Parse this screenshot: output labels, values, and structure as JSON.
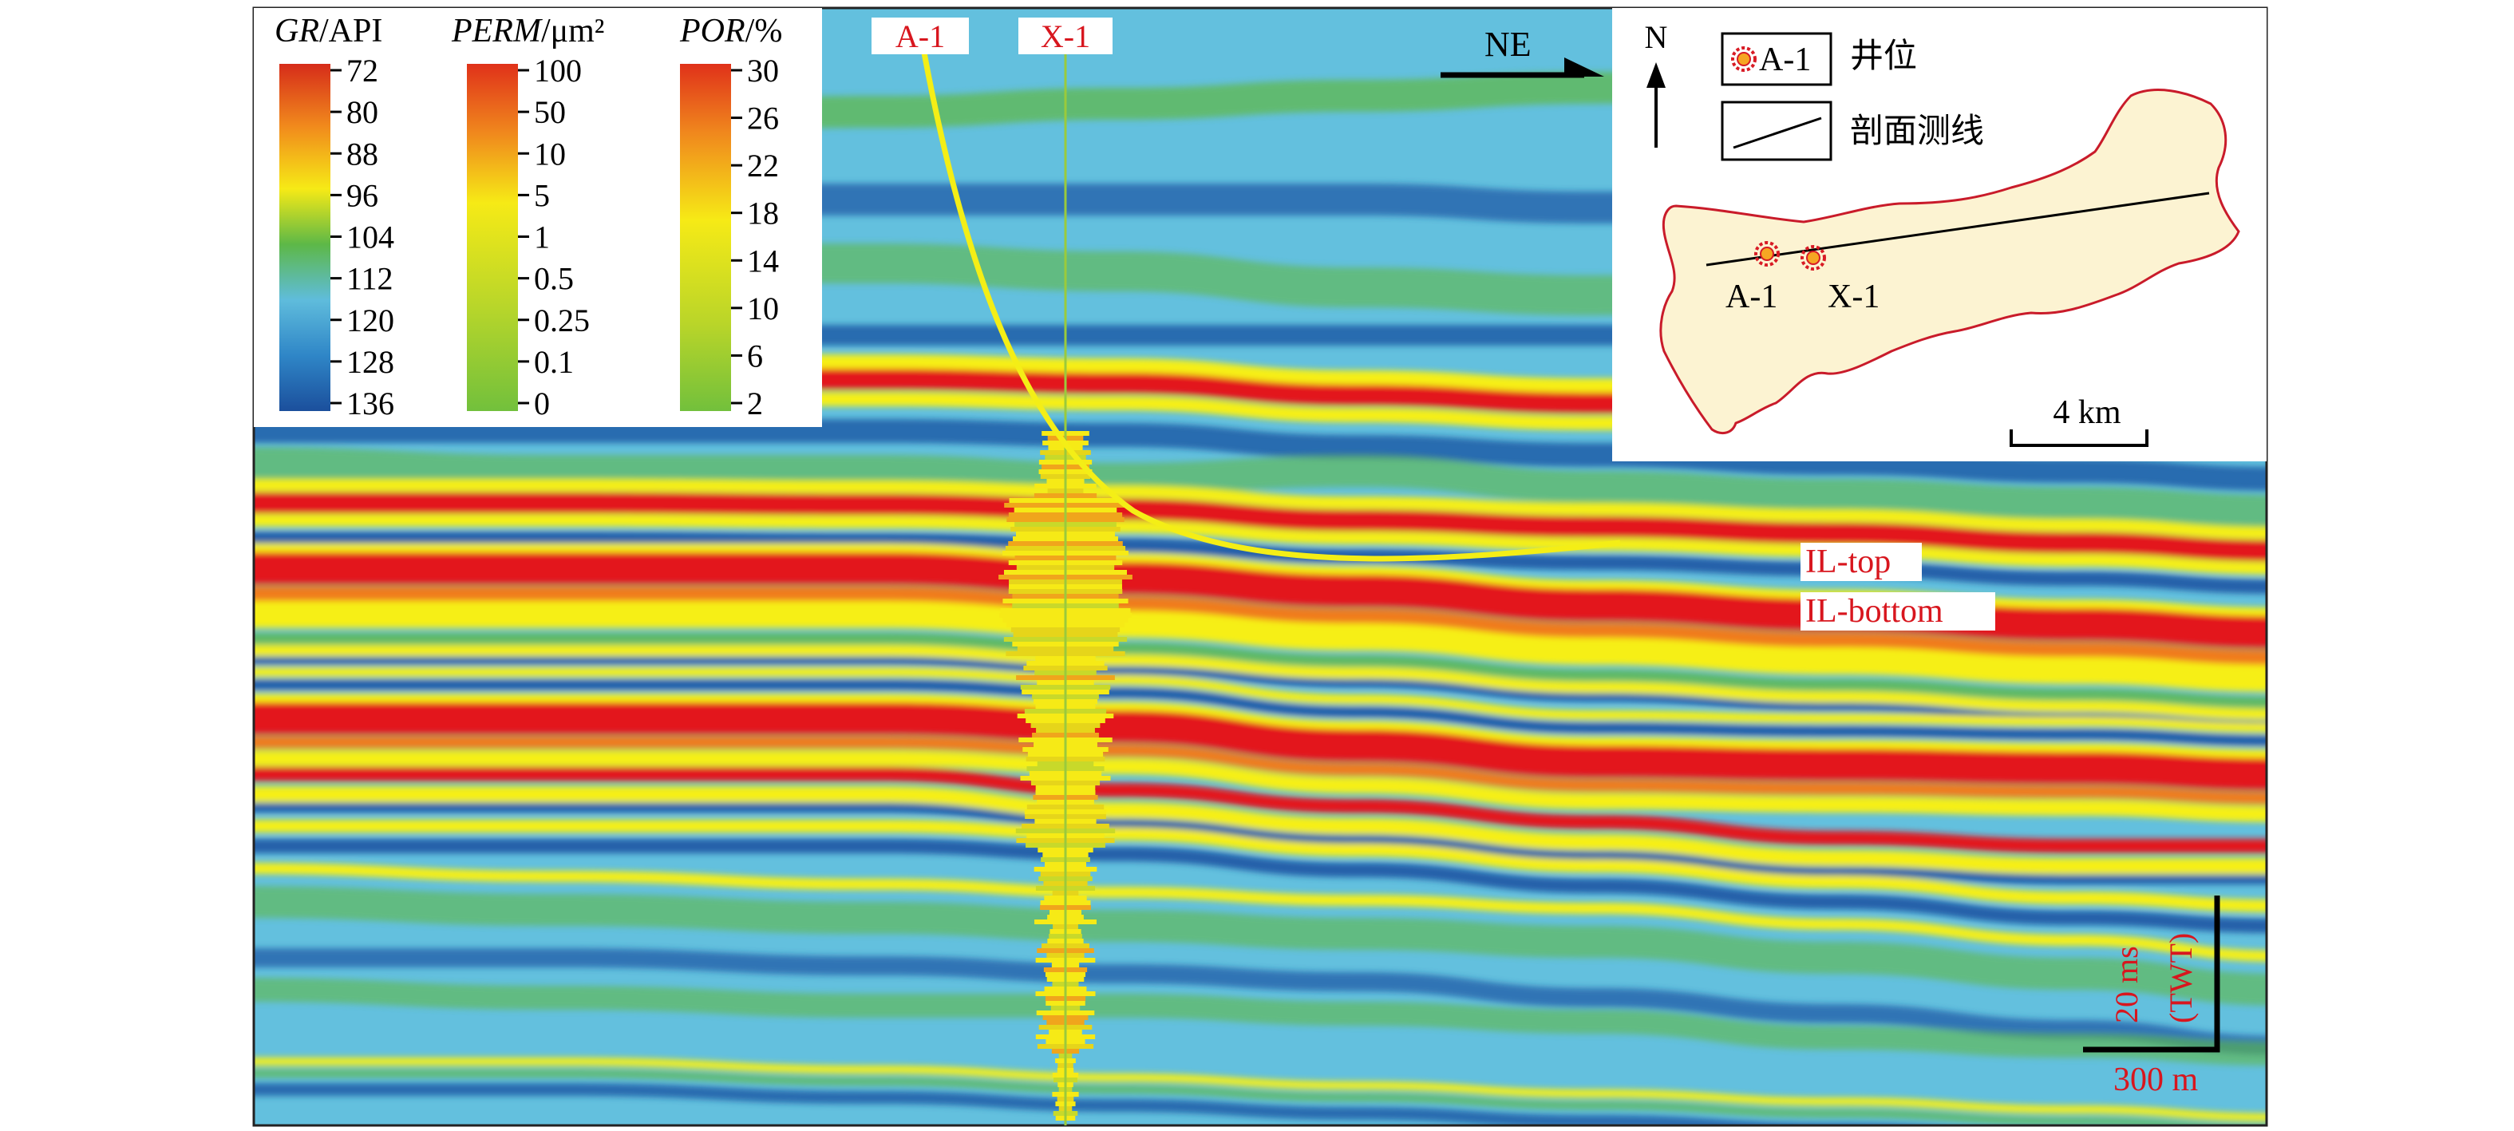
{
  "legend": {
    "gr": {
      "title_italic": "GR",
      "title_unit": "/API",
      "ticks": [
        "72",
        "80",
        "88",
        "96",
        "104",
        "112",
        "120",
        "128",
        "136"
      ]
    },
    "perm": {
      "title_italic": "PERM",
      "title_unit": "/μm²",
      "ticks": [
        "100",
        "50",
        "10",
        "5",
        "1",
        "0.5",
        "0.25",
        "0.1",
        "0"
      ]
    },
    "por": {
      "title_italic": "POR",
      "title_unit": "/%",
      "ticks": [
        "30",
        "26",
        "22",
        "18",
        "14",
        "10",
        "6",
        "2"
      ]
    }
  },
  "wells": {
    "a1": "A-1",
    "x1": "X-1"
  },
  "direction": "NE",
  "inset": {
    "north": "N",
    "legend_well_label": "A-1",
    "legend_well_desc": "井位",
    "legend_line_desc": "剖面测线",
    "well_a1": "A-1",
    "well_x1": "X-1",
    "scale": "4 km"
  },
  "horizons": {
    "top": "IL-top",
    "bottom": "IL-bottom"
  },
  "scalebar": {
    "vertical": "20 ms",
    "vertical_unit": "(TWT)",
    "horizontal": "300 m"
  },
  "colors": {
    "seis_bg": "#63c0de",
    "red": "#e3141b",
    "orange": "#f07b1c",
    "yellow": "#f6ef14",
    "green": "#5fb844",
    "blue": "#1d55a4",
    "map_fill": "#fcf3d2",
    "map_border": "#c91b2a"
  }
}
